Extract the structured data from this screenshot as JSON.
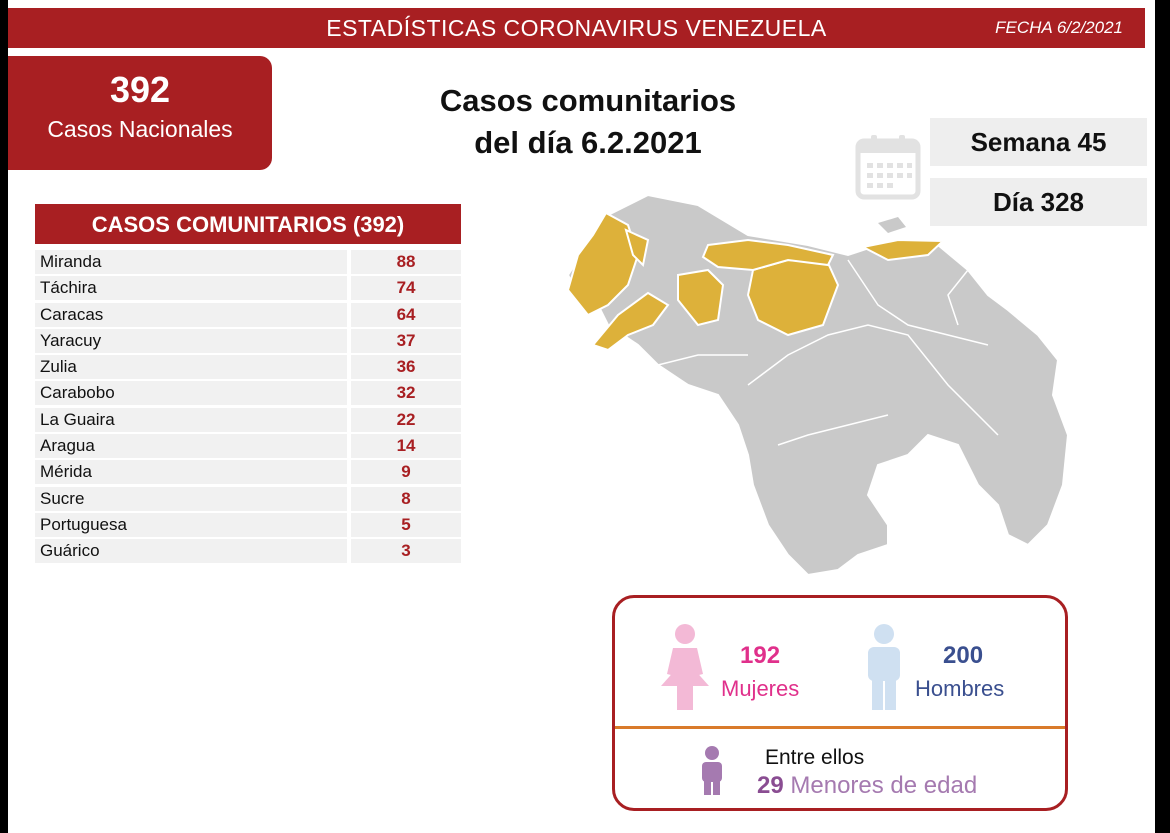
{
  "header": {
    "title": "ESTADÍSTICAS CORONAVIRUS VENEZUELA",
    "date": "FECHA 6/2/2021"
  },
  "national": {
    "count": "392",
    "label": "Casos Nacionales"
  },
  "heading": {
    "line1": "Casos comunitarios",
    "line2": "del día 6.2.2021"
  },
  "week": "Semana 45",
  "day": "Día 328",
  "table": {
    "title": "CASOS COMUNITARIOS (392)",
    "rows": [
      {
        "state": "Miranda",
        "cases": "88"
      },
      {
        "state": "Táchira",
        "cases": "74"
      },
      {
        "state": "Caracas",
        "cases": "64"
      },
      {
        "state": "Yaracuy",
        "cases": "37"
      },
      {
        "state": "Zulia",
        "cases": "36"
      },
      {
        "state": "Carabobo",
        "cases": "32"
      },
      {
        "state": "La Guaira",
        "cases": "22"
      },
      {
        "state": "Aragua",
        "cases": "14"
      },
      {
        "state": "Mérida",
        "cases": "9"
      },
      {
        "state": "Sucre",
        "cases": "8"
      },
      {
        "state": "Portuguesa",
        "cases": "5"
      },
      {
        "state": "Guárico",
        "cases": "3"
      }
    ]
  },
  "gender": {
    "women_count": "192",
    "women_label": "Mujeres",
    "men_count": "200",
    "men_label": "Hombres",
    "among": "Entre ellos",
    "minors_count": "29",
    "minors_label": "Menores de edad"
  },
  "colors": {
    "brand_red": "#a81f22",
    "affected": "#ddb13a",
    "unaffected": "#c9c9c9",
    "women": "#e0308b",
    "men": "#3a4f8f"
  },
  "icons": {
    "calendar": "calendar-icon",
    "woman": "woman-icon",
    "man": "man-icon",
    "child": "child-icon"
  }
}
